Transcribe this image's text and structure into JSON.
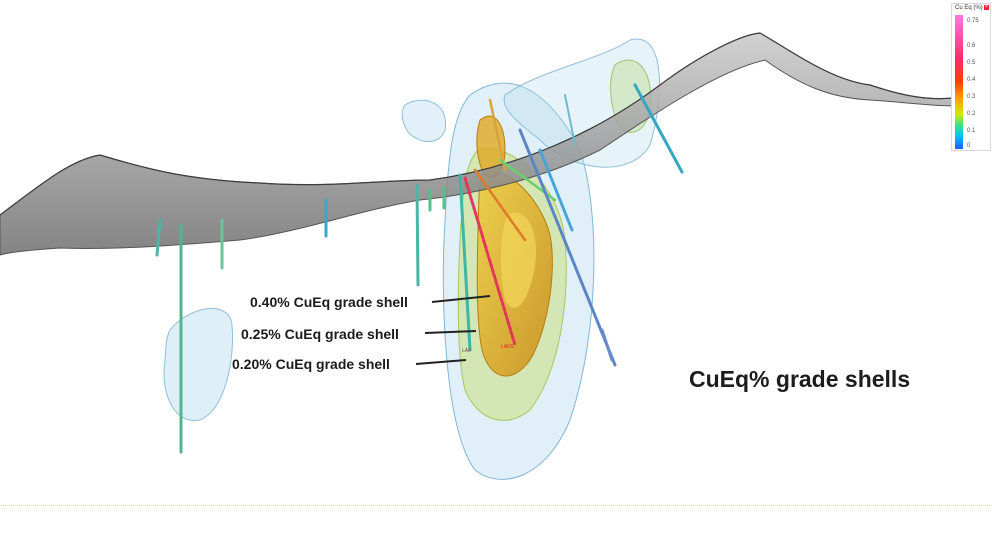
{
  "labels": {
    "shell_040": "0.40% CuEq grade shell",
    "shell_025": "0.25% CuEq grade shell",
    "shell_020": "0.20% CuEq grade shell"
  },
  "title": "CuEq% grade shells",
  "legend": {
    "title": "Cu Eq (%)",
    "ticks": [
      "0.75",
      "0.6",
      "0.5",
      "0.4",
      "0.3",
      "0.2",
      "0.1",
      "0"
    ]
  },
  "drillhole_labels": [
    "LAFS",
    "LAF"
  ],
  "colors": {
    "shell_040": "#e3b21a",
    "shell_025": "#c8df7a",
    "shell_020": "#a9d4ea",
    "terrain": "#8f8f8f"
  }
}
